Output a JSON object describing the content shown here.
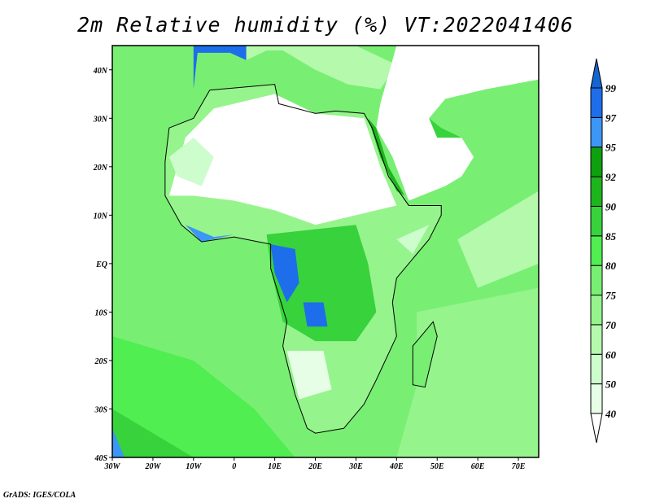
{
  "title": "2m Relative humidity (%) VT:2022041406",
  "credit": "GrADS: IGES/COLA",
  "map": {
    "lon_range": [
      -30,
      75
    ],
    "lat_range": [
      -40,
      45
    ],
    "lon_labels": [
      {
        "v": -30,
        "t": "30W"
      },
      {
        "v": -20,
        "t": "20W"
      },
      {
        "v": -10,
        "t": "10W"
      },
      {
        "v": 0,
        "t": "0"
      },
      {
        "v": 10,
        "t": "10E"
      },
      {
        "v": 20,
        "t": "20E"
      },
      {
        "v": 30,
        "t": "30E"
      },
      {
        "v": 40,
        "t": "40E"
      },
      {
        "v": 50,
        "t": "50E"
      },
      {
        "v": 60,
        "t": "60E"
      },
      {
        "v": 70,
        "t": "70E"
      }
    ],
    "lat_labels": [
      {
        "v": 40,
        "t": "40N"
      },
      {
        "v": 30,
        "t": "30N"
      },
      {
        "v": 20,
        "t": "20N"
      },
      {
        "v": 10,
        "t": "10N"
      },
      {
        "v": 0,
        "t": "EQ"
      },
      {
        "v": -10,
        "t": "10S"
      },
      {
        "v": -20,
        "t": "20S"
      },
      {
        "v": -30,
        "t": "30S"
      },
      {
        "v": -40,
        "t": "40S"
      }
    ]
  },
  "legend": {
    "levels": [
      "40",
      "50",
      "60",
      "70",
      "75",
      "80",
      "85",
      "90",
      "92",
      "95",
      "97",
      "99"
    ],
    "colors": [
      "#e6fde6",
      "#cdfccd",
      "#b4f9ac",
      "#96f48c",
      "#78ef73",
      "#50ee50",
      "#37d23c",
      "#1eb41e",
      "#0fa00f",
      "#3c96f5",
      "#1e6eeb",
      "#1464d2"
    ],
    "below_color": "#ffffff"
  }
}
